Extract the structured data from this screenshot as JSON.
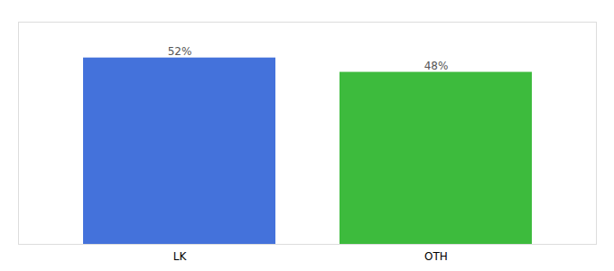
{
  "chart_data": {
    "type": "bar",
    "categories": [
      "LK",
      "OTH"
    ],
    "values": [
      52,
      48
    ],
    "value_labels": [
      "52%",
      "48%"
    ],
    "colors": [
      "#4472db",
      "#3dbb3d"
    ],
    "ylim": [
      0,
      62
    ],
    "data_labels": true,
    "tick_labels": "x"
  }
}
